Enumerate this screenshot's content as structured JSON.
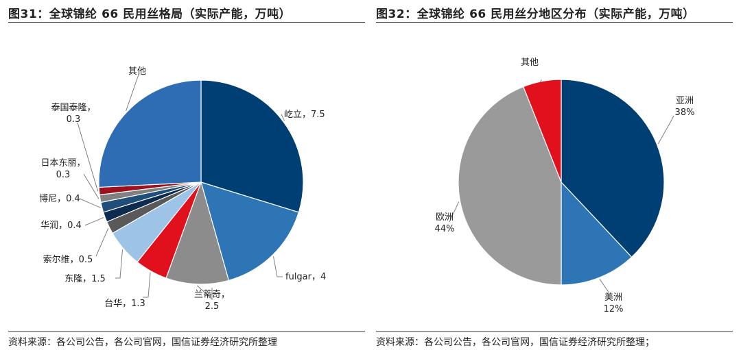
{
  "charts": [
    {
      "title": "图31：全球锦纶 66 民用丝格局（实际产能，万吨）",
      "source": "资料来源：各公司公告，各公司官网，国信证券经济研究所整理"
    },
    {
      "title": "图32：全球锦纶 66 民用丝分地区分布（实际产能，万吨）",
      "source": "资料来源：各公司公告，各公司官网，国信证券经济研究所整理；"
    }
  ],
  "chart_data": [
    {
      "type": "pie",
      "title": "图31：全球锦纶 66 民用丝格局（实际产能，万吨）",
      "slices": [
        {
          "name": "屹立",
          "value": 7.5,
          "label_line1": "屹立，7.5",
          "label_line2": "",
          "color": "#003f73"
        },
        {
          "name": "fulgar",
          "value": 4,
          "label_line1": "fulgar，4",
          "label_line2": "",
          "color": "#2e75b6"
        },
        {
          "name": "兰蒂奇",
          "value": 2.5,
          "label_line1": "兰蒂奇，",
          "label_line2": "2.5",
          "color": "#8c8c8c"
        },
        {
          "name": "台华",
          "value": 1.3,
          "label_line1": "台华，1.3",
          "label_line2": "",
          "color": "#e0101c"
        },
        {
          "name": "东隆",
          "value": 1.5,
          "label_line1": "东隆，1.5",
          "label_line2": "",
          "color": "#9dc3e6"
        },
        {
          "name": "索尔维",
          "value": 0.5,
          "label_line1": "索尔维，0.5",
          "label_line2": "",
          "color": "#595959"
        },
        {
          "name": "华润",
          "value": 0.4,
          "label_line1": "华润，0.4",
          "label_line2": "",
          "color": "#0d2b4f"
        },
        {
          "name": "博尼",
          "value": 0.4,
          "label_line1": "博尼，0.4",
          "label_line2": "",
          "color": "#1f4e79"
        },
        {
          "name": "日本东丽",
          "value": 0.3,
          "label_line1": "日本东丽，",
          "label_line2": "0.3",
          "color": "#808080"
        },
        {
          "name": "泰国泰隆",
          "value": 0.3,
          "label_line1": "泰国泰隆，",
          "label_line2": "0.3",
          "color": "#9b111e"
        },
        {
          "name": "其他",
          "value": 6.5,
          "label_line1": "其他",
          "label_line2": "",
          "color": "#2e6db4"
        }
      ]
    },
    {
      "type": "pie",
      "title": "图32：全球锦纶 66 民用丝分地区分布（实际产能，万吨）",
      "slices": [
        {
          "name": "亚洲",
          "value": 38,
          "label_line1": "亚洲",
          "label_line2": "38%",
          "color": "#003f73"
        },
        {
          "name": "美洲",
          "value": 12,
          "label_line1": "美洲",
          "label_line2": "12%",
          "color": "#2e75b6"
        },
        {
          "name": "欧洲",
          "value": 44,
          "label_line1": "欧洲",
          "label_line2": "44%",
          "color": "#9a9a9a"
        },
        {
          "name": "其他",
          "value": 6,
          "label_line1": "其他",
          "label_line2": "",
          "color": "#e0101c"
        }
      ]
    }
  ]
}
